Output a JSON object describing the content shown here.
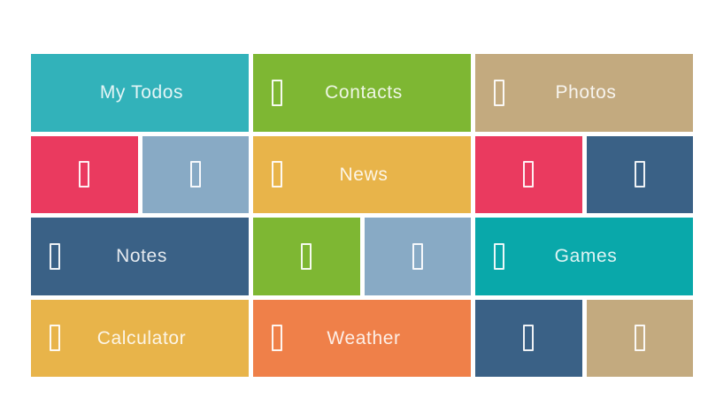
{
  "app": {
    "name": "app-tile-dashboard",
    "background_color": "#ffffff",
    "text_color": "rgba(255,255,255,0.87)",
    "icon_note": "tofu-box (missing icon-font glyph placeholder)"
  },
  "palette": {
    "cyan": "#32b2ba",
    "green": "#7eb733",
    "tan": "#c3aa7f",
    "pink": "#ea3a5f",
    "steel_blue": "#88aac5",
    "yellow": "#e8b44a",
    "navy": "#3a6186",
    "teal": "#09a8aa",
    "orange": "#ef8049"
  },
  "tiles": [
    {
      "name": "my-todos",
      "label": "My Todos",
      "color": "#32b2ba",
      "span": 2,
      "icon": false
    },
    {
      "name": "contacts",
      "label": "Contacts",
      "color": "#7eb733",
      "span": 2,
      "icon": true
    },
    {
      "name": "photos",
      "label": "Photos",
      "color": "#c3aa7f",
      "span": 2,
      "icon": true
    },
    {
      "name": "pink-tile-left",
      "label": "",
      "color": "#ea3a5f",
      "span": 1,
      "icon": true
    },
    {
      "name": "blue-tile-left",
      "label": "",
      "color": "#88aac5",
      "span": 1,
      "icon": true
    },
    {
      "name": "news",
      "label": "News",
      "color": "#e8b44a",
      "span": 2,
      "icon": true
    },
    {
      "name": "pink-tile-right",
      "label": "",
      "color": "#ea3a5f",
      "span": 1,
      "icon": true
    },
    {
      "name": "navy-tile-right",
      "label": "",
      "color": "#3a6186",
      "span": 1,
      "icon": true
    },
    {
      "name": "notes",
      "label": "Notes",
      "color": "#3a6186",
      "span": 2,
      "icon": true
    },
    {
      "name": "green-tile-middle",
      "label": "",
      "color": "#7eb733",
      "span": 1,
      "icon": true
    },
    {
      "name": "blue-tile-middle",
      "label": "",
      "color": "#88aac5",
      "span": 1,
      "icon": true
    },
    {
      "name": "games",
      "label": "Games",
      "color": "#09a8aa",
      "span": 2,
      "icon": true
    },
    {
      "name": "calculator",
      "label": "Calculator",
      "color": "#e8b44a",
      "span": 2,
      "icon": true
    },
    {
      "name": "weather",
      "label": "Weather",
      "color": "#ef8049",
      "span": 2,
      "icon": true
    },
    {
      "name": "navy-tile-bottom",
      "label": "",
      "color": "#3a6186",
      "span": 1,
      "icon": true
    },
    {
      "name": "tan-tile-bottom",
      "label": "",
      "color": "#c3aa7f",
      "span": 1,
      "icon": true
    }
  ]
}
